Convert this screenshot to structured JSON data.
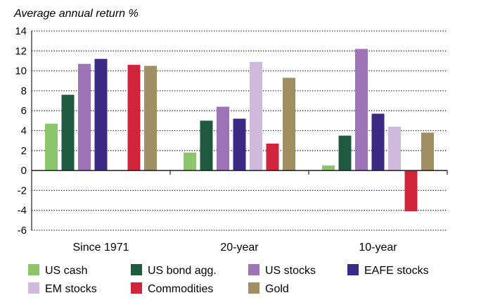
{
  "chart_data": {
    "type": "bar",
    "ylabel": "Average annual return %",
    "ylim": [
      -6,
      14
    ],
    "yticks": [
      14,
      12,
      10,
      8,
      6,
      4,
      2,
      0,
      -2,
      -4,
      -6
    ],
    "grid": true,
    "legend_position": "bottom",
    "categories": [
      "Since 1971",
      "20-year",
      "10-year"
    ],
    "series": [
      {
        "name": "US cash",
        "color": "#8dc56c",
        "values": [
          4.7,
          1.8,
          0.5
        ]
      },
      {
        "name": "US bond agg.",
        "color": "#1e5a40",
        "values": [
          7.6,
          5.0,
          3.5
        ]
      },
      {
        "name": "US stocks",
        "color": "#9d74b5",
        "values": [
          10.7,
          6.4,
          12.2
        ]
      },
      {
        "name": "EAFE stocks",
        "color": "#3b2a84",
        "values": [
          11.2,
          5.2,
          5.7
        ]
      },
      {
        "name": "EM stocks",
        "color": "#cfbade",
        "values": [
          null,
          10.9,
          4.4
        ]
      },
      {
        "name": "Commodities",
        "color": "#d0243a",
        "values": [
          10.6,
          2.7,
          -4.1
        ]
      },
      {
        "name": "Gold",
        "color": "#a08f63",
        "values": [
          10.5,
          9.3,
          3.8
        ]
      }
    ]
  }
}
